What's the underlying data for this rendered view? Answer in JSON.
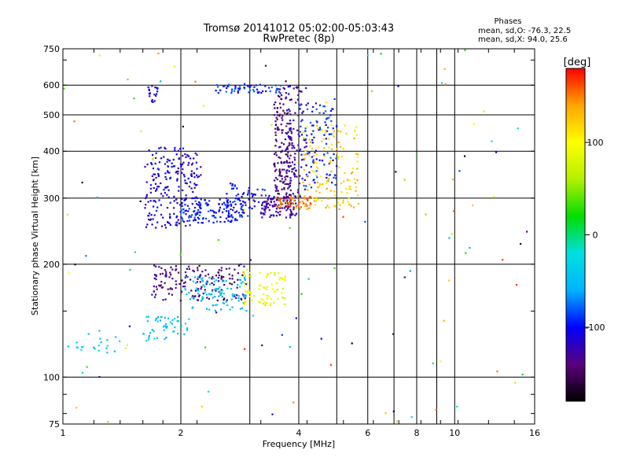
{
  "chart_data": {
    "type": "scatter",
    "title": "Tromsø 20141012 05:02:00-05:03:43",
    "subtitle": "RwPretec (8p)",
    "xlabel": "Frequency [MHz]",
    "ylabel": "Stationary phase Virtual Height [km]",
    "xscale": "log",
    "yscale": "log",
    "xlim": [
      1,
      16
    ],
    "ylim": [
      75,
      750
    ],
    "x_ticks": [
      1,
      2,
      4,
      6,
      8,
      10,
      16
    ],
    "x_minor_ticks": [
      3,
      5,
      7,
      9
    ],
    "y_ticks": [
      75,
      100,
      200,
      300,
      400,
      500,
      600,
      750
    ],
    "y_minor_ticks": [
      150
    ],
    "grid": true,
    "stats": {
      "header": "Phases",
      "line_o": "mean, sd,O: -76.3, 22.5",
      "line_x": "mean, sd,X:  94.0, 25.6"
    },
    "colorbar": {
      "label": "[deg]",
      "range": [
        -180,
        180
      ],
      "ticks": [
        100,
        0,
        -100
      ],
      "colors": [
        "#000000",
        "#5a007d",
        "#0000ff",
        "#00b4ff",
        "#00e0e0",
        "#00dd00",
        "#b4f000",
        "#ffff00",
        "#ffa500",
        "#ff0000"
      ]
    },
    "clusters": [
      {
        "f": [
          1.62,
          2.25
        ],
        "h": [
          250,
          410
        ],
        "phase": -112,
        "n": 230
      },
      {
        "f": [
          2.0,
          2.9
        ],
        "h": [
          258,
          300
        ],
        "phase": -95,
        "n": 130
      },
      {
        "f": [
          2.6,
          3.3
        ],
        "h": [
          262,
          330
        ],
        "phase": -105,
        "n": 60
      },
      {
        "f": [
          3.2,
          3.95
        ],
        "h": [
          266,
          305
        ],
        "phase": -128,
        "n": 120
      },
      {
        "f": [
          3.45,
          3.85
        ],
        "h": [
          300,
          590
        ],
        "phase": -140,
        "n": 180
      },
      {
        "f": [
          4.0,
          5.0
        ],
        "h": [
          320,
          560
        ],
        "phase": -95,
        "n": 110
      },
      {
        "f": [
          4.1,
          5.7
        ],
        "h": [
          280,
          470
        ],
        "phase": 122,
        "n": 140
      },
      {
        "f": [
          3.5,
          4.3
        ],
        "h": [
          280,
          305
        ],
        "phase": 150,
        "n": 55
      },
      {
        "f": [
          3.75,
          4.2
        ],
        "h": [
          300,
          600
        ],
        "phase": -118,
        "n": 70
      },
      {
        "f": [
          2.45,
          3.6
        ],
        "h": [
          570,
          605
        ],
        "phase": -90,
        "n": 60
      },
      {
        "f": [
          1.65,
          1.75
        ],
        "h": [
          540,
          600
        ],
        "phase": -110,
        "n": 20
      },
      {
        "f": [
          1.68,
          2.95
        ],
        "h": [
          160,
          200
        ],
        "phase": -140,
        "n": 160
      },
      {
        "f": [
          2.05,
          2.95
        ],
        "h": [
          150,
          185
        ],
        "phase": -45,
        "n": 100
      },
      {
        "f": [
          2.9,
          3.7
        ],
        "h": [
          155,
          190
        ],
        "phase": 92,
        "n": 75
      },
      {
        "f": [
          1.6,
          2.1
        ],
        "h": [
          125,
          145
        ],
        "phase": -45,
        "n": 50
      },
      {
        "f": [
          1.02,
          1.45
        ],
        "h": [
          115,
          135
        ],
        "phase": -40,
        "n": 22
      },
      {
        "f": [
          1.0,
          16.0
        ],
        "h": [
          75,
          750
        ],
        "phase": 0,
        "n": 120,
        "spread": 360
      }
    ]
  }
}
